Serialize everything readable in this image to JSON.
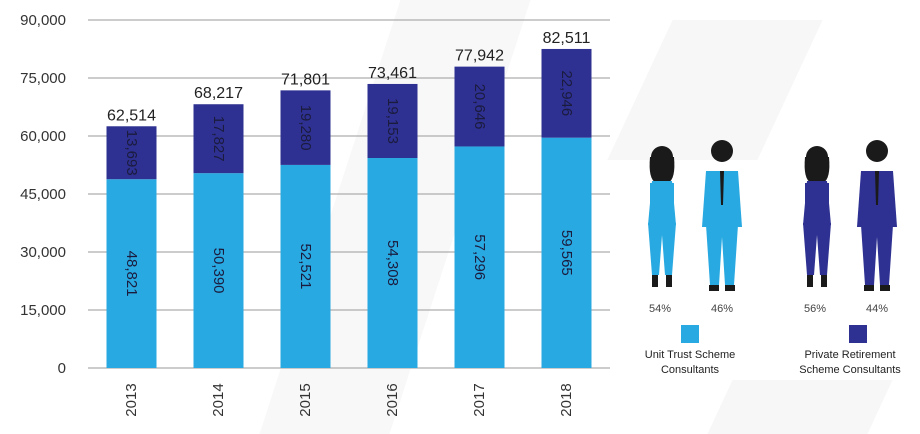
{
  "chart_data": {
    "type": "bar",
    "stacked": true,
    "categories": [
      "2013",
      "2014",
      "2015",
      "2016",
      "2017",
      "2018"
    ],
    "series": [
      {
        "name": "Unit Trust Scheme Consultants",
        "color": "#29a9e1",
        "values": [
          48821,
          50390,
          52521,
          54308,
          57296,
          59565
        ]
      },
      {
        "name": "Private Retirement Scheme Consultants",
        "color": "#2e3192",
        "values": [
          13693,
          17827,
          19280,
          19153,
          20646,
          22946
        ]
      }
    ],
    "totals": [
      "62,514",
      "68,217",
      "71,801",
      "73,461",
      "77,942",
      "82,511"
    ],
    "segment_labels": [
      [
        "48,821",
        "50,390",
        "52,521",
        "54,308",
        "57,296",
        "59,565"
      ],
      [
        "13,693",
        "17,827",
        "19,280",
        "19,153",
        "20,646",
        "22,946"
      ]
    ],
    "y_ticks": [
      0,
      15000,
      30000,
      45000,
      60000,
      75000,
      90000
    ],
    "y_tick_labels": [
      "0",
      "15,000",
      "30,000",
      "45,000",
      "60,000",
      "75,000",
      "90,000"
    ],
    "ylim": [
      0,
      90000
    ],
    "grid": true,
    "legend": "right"
  },
  "gender_panels": [
    {
      "female_pct": "54%",
      "male_pct": "46%",
      "legend_label_line1": "Unit Trust Scheme",
      "legend_label_line2": "Consultants",
      "color": "#29a9e1"
    },
    {
      "female_pct": "56%",
      "male_pct": "44%",
      "legend_label_line1": "Private Retirement",
      "legend_label_line2": "Scheme Consultants",
      "color": "#2e3192"
    }
  ]
}
